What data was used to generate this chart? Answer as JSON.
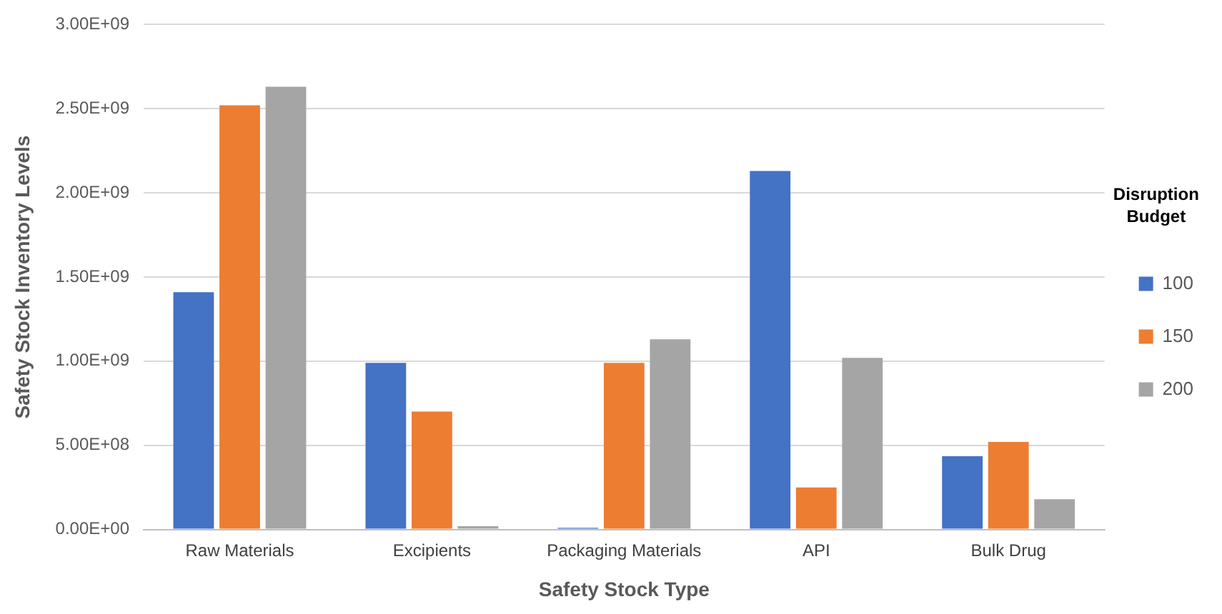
{
  "chart_data": {
    "type": "bar",
    "xlabel": "Safety Stock Type",
    "ylabel": "Safety Stock Inventory Levels",
    "legend_title": "Disruption Budget",
    "categories": [
      "Raw Materials",
      "Excipients",
      "Packaging Materials",
      "API",
      "Bulk Drug"
    ],
    "series": [
      {
        "name": "100",
        "color": "#4472c4",
        "values": [
          1410000000,
          990000000,
          10000000,
          2130000000,
          435000000
        ]
      },
      {
        "name": "150",
        "color": "#ed7d31",
        "values": [
          2520000000,
          700000000,
          990000000,
          250000000,
          520000000
        ]
      },
      {
        "name": "200",
        "color": "#a5a5a5",
        "values": [
          2630000000,
          20000000,
          1130000000,
          1020000000,
          180000000
        ]
      }
    ],
    "ylim": [
      0,
      3000000000
    ],
    "yticks": [
      {
        "value": 0,
        "label": "0.00E+00"
      },
      {
        "value": 500000000,
        "label": "5.00E+08"
      },
      {
        "value": 1000000000,
        "label": "1.00E+09"
      },
      {
        "value": 1500000000,
        "label": "1.50E+09"
      },
      {
        "value": 2000000000,
        "label": "2.00E+09"
      },
      {
        "value": 2500000000,
        "label": "2.50E+09"
      },
      {
        "value": 3000000000,
        "label": "3.00E+09"
      }
    ],
    "grid": "y",
    "legend": "right"
  }
}
